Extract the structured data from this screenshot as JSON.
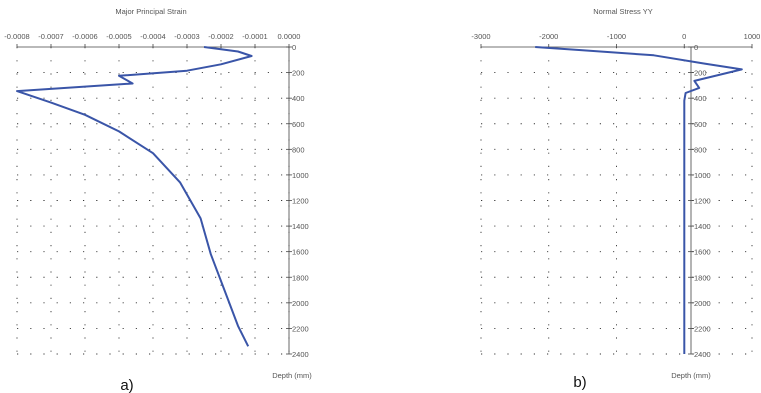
{
  "panels": [
    {
      "caption": "a)"
    },
    {
      "caption": "b)"
    }
  ],
  "chart_data": [
    {
      "type": "line",
      "title": "Major Principal Strain",
      "xlabel": "",
      "ylabel": "Depth (mm)",
      "xlim": [
        -0.0008,
        0.0
      ],
      "ylim": [
        0,
        2400
      ],
      "y_inverted": true,
      "x_axis_position": "top",
      "y_axis_position": "right",
      "grid": "dotted",
      "x_ticks": [
        "-0.0008",
        "-0.0007",
        "-0.0006",
        "-0.0005",
        "-0.0004",
        "-0.0003",
        "-0.0002",
        "-0.0001",
        "0.0000"
      ],
      "x_tick_values": [
        -0.0008,
        -0.0007,
        -0.0006,
        -0.0005,
        -0.0004,
        -0.0003,
        -0.0002,
        -0.0001,
        0.0
      ],
      "y_ticks": [
        "0",
        "200",
        "400",
        "600",
        "800",
        "1000",
        "1200",
        "1400",
        "1600",
        "1800",
        "2000",
        "2200",
        "2400"
      ],
      "y_tick_values": [
        0,
        200,
        400,
        600,
        800,
        1000,
        1200,
        1400,
        1600,
        1800,
        2000,
        2200,
        2400
      ],
      "color": "#3a55a8",
      "series": [
        {
          "points": [
            [
              -0.00025,
              0
            ],
            [
              -0.00015,
              35
            ],
            [
              -0.00011,
              70
            ],
            [
              -0.0002,
              135
            ],
            [
              -0.0003,
              185
            ],
            [
              -0.0005,
              225
            ],
            [
              -0.00046,
              285
            ],
            [
              -0.0008,
              345
            ],
            [
              -0.0007,
              435
            ],
            [
              -0.0006,
              530
            ],
            [
              -0.0005,
              660
            ],
            [
              -0.0004,
              830
            ],
            [
              -0.00032,
              1060
            ],
            [
              -0.00026,
              1340
            ],
            [
              -0.00023,
              1620
            ],
            [
              -0.00019,
              1900
            ],
            [
              -0.00015,
              2180
            ],
            [
              -0.00012,
              2340
            ]
          ]
        }
      ]
    },
    {
      "type": "line",
      "title": "Normal Stress YY",
      "xlabel": "",
      "ylabel": "Depth (mm)",
      "xlim": [
        -3000,
        1000
      ],
      "ylim": [
        0,
        2400
      ],
      "y_inverted": true,
      "x_axis_position": "top",
      "y_axis_position": "at x=0",
      "grid": "dotted",
      "x_ticks": [
        "-3000",
        "-2000",
        "-1000",
        "0",
        "1000"
      ],
      "x_tick_values": [
        -3000,
        -2000,
        -1000,
        0,
        1000
      ],
      "y_ticks": [
        "0",
        "200",
        "400",
        "600",
        "800",
        "1000",
        "1200",
        "1400",
        "1600",
        "1800",
        "2000",
        "2200",
        "2400"
      ],
      "y_tick_values": [
        0,
        200,
        400,
        600,
        800,
        1000,
        1200,
        1400,
        1600,
        1800,
        2000,
        2200,
        2400
      ],
      "color": "#3a55a8",
      "series": [
        {
          "points": [
            [
              -2200,
              0
            ],
            [
              -1500,
              25
            ],
            [
              -450,
              65
            ],
            [
              300,
              130
            ],
            [
              850,
              175
            ],
            [
              150,
              265
            ],
            [
              220,
              320
            ],
            [
              20,
              360
            ],
            [
              0,
              420
            ],
            [
              0,
              2400
            ]
          ]
        }
      ]
    }
  ]
}
